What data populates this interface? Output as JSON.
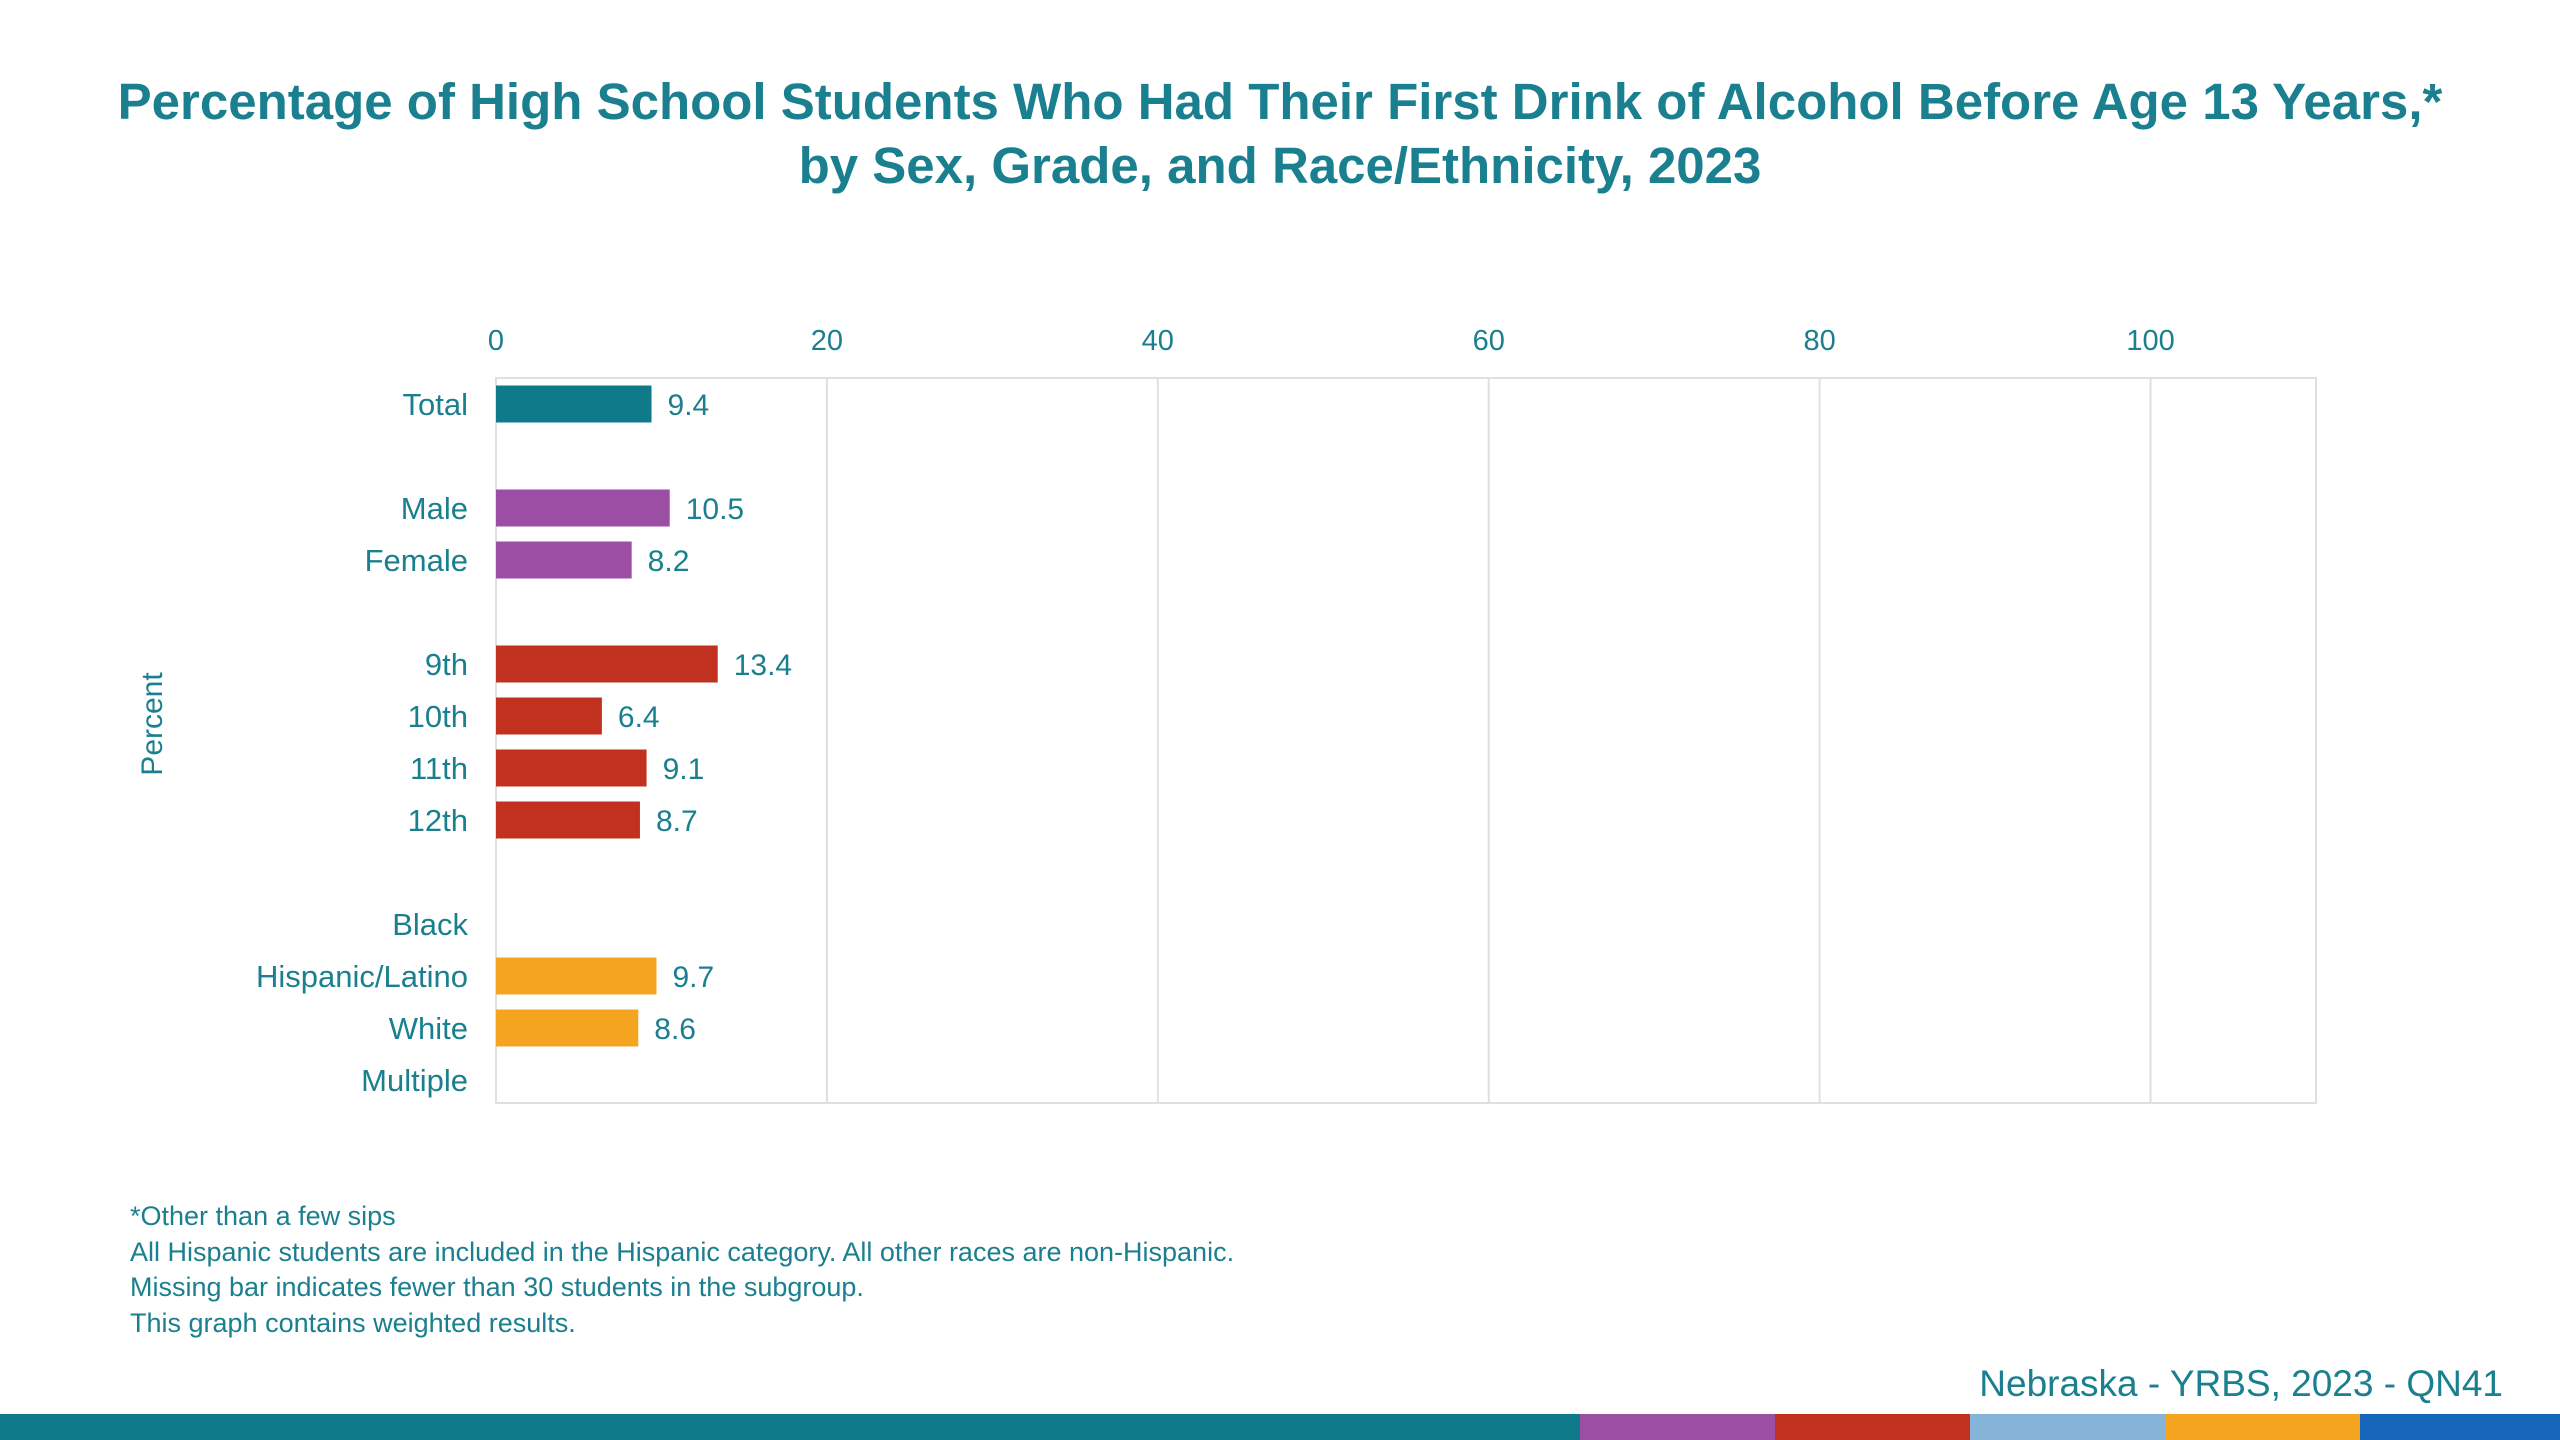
{
  "title": "Percentage of High School Students Who Had Their First Drink of Alcohol Before Age 13 Years,* by Sex, Grade, and Race/Ethnicity, 2023",
  "notes": [
    "*Other than a few sips",
    "All Hispanic students are included in the Hispanic category.  All other races are non-Hispanic.",
    "Missing bar indicates fewer than 30 students in the subgroup.",
    "This graph contains weighted results."
  ],
  "source": "Nebraska - YRBS, 2023 - QN41",
  "footer_colors": [
    "#0e7a8a",
    "#9b4ea3",
    "#c0321f",
    "#86b4d9",
    "#f5a420",
    "#1566b8"
  ],
  "chart_data": {
    "type": "bar",
    "orientation": "horizontal",
    "ylabel": "Percent",
    "xlim": [
      0,
      110
    ],
    "xticks": [
      0,
      20,
      40,
      60,
      80,
      100
    ],
    "grid": true,
    "text_color": "#1a7f8e",
    "groups": [
      {
        "color": "#0e7a8a",
        "items": [
          {
            "label": "Total",
            "value": 9.4
          }
        ]
      },
      {
        "color": "#9b4ea3",
        "items": [
          {
            "label": "Male",
            "value": 10.5
          },
          {
            "label": "Female",
            "value": 8.2
          }
        ]
      },
      {
        "color": "#c0321f",
        "items": [
          {
            "label": "9th",
            "value": 13.4
          },
          {
            "label": "10th",
            "value": 6.4
          },
          {
            "label": "11th",
            "value": 9.1
          },
          {
            "label": "12th",
            "value": 8.7
          }
        ]
      },
      {
        "color": "#f5a420",
        "items": [
          {
            "label": "Black",
            "value": null
          },
          {
            "label": "Hispanic/Latino",
            "value": 9.7
          },
          {
            "label": "White",
            "value": 8.6
          },
          {
            "label": "Multiple",
            "value": null
          }
        ]
      }
    ]
  }
}
